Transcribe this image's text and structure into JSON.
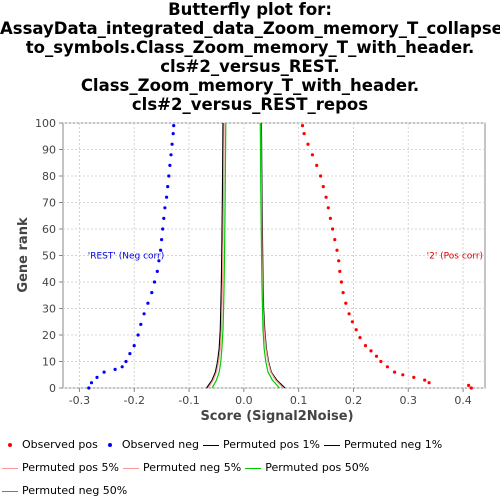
{
  "title_lines": [
    "Butterfly plot for:",
    "AssayData_integrated_data_Zoom_memory_T_collapsed_",
    "to_symbols.Class_Zoom_memory_T_with_header.",
    "cls#2_versus_REST.",
    "Class_Zoom_memory_T_with_header.",
    "cls#2_versus_REST_repos"
  ],
  "chart_data": {
    "type": "scatter",
    "xlabel": "Score (Signal2Noise)",
    "ylabel": "Gene rank",
    "xlim": [
      -0.33,
      0.44
    ],
    "ylim": [
      0,
      100
    ],
    "xticks": [
      "-0.3",
      "-0.2",
      "-0.1",
      "0.0",
      "0.1",
      "0.2",
      "0.3",
      "0.4"
    ],
    "xtick_values": [
      -0.3,
      -0.2,
      -0.1,
      0.0,
      0.1,
      0.2,
      0.3,
      0.4
    ],
    "yticks": [
      "0",
      "10",
      "20",
      "30",
      "40",
      "50",
      "60",
      "70",
      "80",
      "90",
      "100"
    ],
    "ytick_values": [
      0,
      10,
      20,
      30,
      40,
      50,
      60,
      70,
      80,
      90,
      100
    ],
    "grid": true,
    "annotations": [
      {
        "text": "'REST' (Neg corr)",
        "x": -0.215,
        "y": 50,
        "color": "#0000dd"
      },
      {
        "text": "'2' (Pos corr)",
        "x": 0.385,
        "y": 50,
        "color": "#dd0000"
      }
    ],
    "series": [
      {
        "name": "Observed pos",
        "kind": "points",
        "color": "#ff0000",
        "points": [
          [
            0.415,
            0
          ],
          [
            0.41,
            1
          ],
          [
            0.338,
            2
          ],
          [
            0.33,
            3
          ],
          [
            0.31,
            4
          ],
          [
            0.29,
            5
          ],
          [
            0.275,
            6
          ],
          [
            0.262,
            8
          ],
          [
            0.25,
            10
          ],
          [
            0.242,
            12
          ],
          [
            0.232,
            14
          ],
          [
            0.222,
            16
          ],
          [
            0.212,
            19
          ],
          [
            0.205,
            22
          ],
          [
            0.198,
            25
          ],
          [
            0.192,
            28
          ],
          [
            0.186,
            32
          ],
          [
            0.181,
            36
          ],
          [
            0.178,
            40
          ],
          [
            0.175,
            44
          ],
          [
            0.173,
            48
          ],
          [
            0.17,
            52
          ],
          [
            0.166,
            56
          ],
          [
            0.162,
            60
          ],
          [
            0.158,
            64
          ],
          [
            0.154,
            68
          ],
          [
            0.15,
            72
          ],
          [
            0.145,
            76
          ],
          [
            0.14,
            80
          ],
          [
            0.133,
            84
          ],
          [
            0.125,
            88
          ],
          [
            0.117,
            92
          ],
          [
            0.11,
            96
          ],
          [
            0.107,
            99
          ]
        ]
      },
      {
        "name": "Observed neg",
        "kind": "points",
        "color": "#0000ff",
        "points": [
          [
            -0.283,
            0
          ],
          [
            -0.278,
            2
          ],
          [
            -0.268,
            4
          ],
          [
            -0.255,
            6
          ],
          [
            -0.235,
            7
          ],
          [
            -0.222,
            8
          ],
          [
            -0.215,
            10
          ],
          [
            -0.208,
            13
          ],
          [
            -0.2,
            16
          ],
          [
            -0.193,
            20
          ],
          [
            -0.188,
            24
          ],
          [
            -0.182,
            28
          ],
          [
            -0.175,
            32
          ],
          [
            -0.168,
            36
          ],
          [
            -0.163,
            40
          ],
          [
            -0.158,
            44
          ],
          [
            -0.155,
            48
          ],
          [
            -0.152,
            52
          ],
          [
            -0.15,
            56
          ],
          [
            -0.148,
            60
          ],
          [
            -0.146,
            64
          ],
          [
            -0.144,
            68
          ],
          [
            -0.141,
            72
          ],
          [
            -0.139,
            76
          ],
          [
            -0.137,
            80
          ],
          [
            -0.135,
            84
          ],
          [
            -0.133,
            88
          ],
          [
            -0.131,
            92
          ],
          [
            -0.129,
            96
          ],
          [
            -0.128,
            99
          ]
        ]
      },
      {
        "name": "Permuted pos 1%",
        "kind": "line",
        "color": "#000000",
        "points": [
          [
            0.075,
            0
          ],
          [
            0.06,
            3
          ],
          [
            0.05,
            6
          ],
          [
            0.045,
            10
          ],
          [
            0.041,
            15
          ],
          [
            0.038,
            22
          ],
          [
            0.036,
            30
          ],
          [
            0.035,
            40
          ],
          [
            0.034,
            55
          ],
          [
            0.033,
            75
          ],
          [
            0.032,
            100
          ]
        ]
      },
      {
        "name": "Permuted neg 1%",
        "kind": "line",
        "color": "#000000",
        "points": [
          [
            -0.068,
            0
          ],
          [
            -0.058,
            3
          ],
          [
            -0.052,
            6
          ],
          [
            -0.048,
            10
          ],
          [
            -0.045,
            15
          ],
          [
            -0.043,
            22
          ],
          [
            -0.042,
            30
          ],
          [
            -0.041,
            40
          ],
          [
            -0.04,
            55
          ],
          [
            -0.039,
            75
          ],
          [
            -0.038,
            100
          ]
        ]
      },
      {
        "name": "Permuted pos 5%",
        "kind": "line",
        "color": "#ff9999",
        "points": [
          [
            0.072,
            0
          ],
          [
            0.058,
            3
          ],
          [
            0.049,
            6
          ],
          [
            0.044,
            10
          ],
          [
            0.04,
            15
          ],
          [
            0.037,
            22
          ],
          [
            0.035,
            30
          ],
          [
            0.034,
            40
          ],
          [
            0.033,
            55
          ],
          [
            0.032,
            75
          ],
          [
            0.031,
            100
          ]
        ]
      },
      {
        "name": "Permuted neg 5%",
        "kind": "line",
        "color": "#ff9999",
        "points": [
          [
            -0.065,
            0
          ],
          [
            -0.056,
            3
          ],
          [
            -0.05,
            6
          ],
          [
            -0.046,
            10
          ],
          [
            -0.043,
            15
          ],
          [
            -0.041,
            22
          ],
          [
            -0.04,
            30
          ],
          [
            -0.039,
            40
          ],
          [
            -0.038,
            55
          ],
          [
            -0.037,
            75
          ],
          [
            -0.036,
            100
          ]
        ]
      },
      {
        "name": "Permuted pos 50%",
        "kind": "line",
        "color": "#00cc00",
        "points": [
          [
            0.065,
            0
          ],
          [
            0.052,
            3
          ],
          [
            0.044,
            6
          ],
          [
            0.04,
            10
          ],
          [
            0.037,
            15
          ],
          [
            0.035,
            22
          ],
          [
            0.034,
            30
          ],
          [
            0.033,
            40
          ],
          [
            0.032,
            55
          ],
          [
            0.031,
            75
          ],
          [
            0.03,
            100
          ]
        ]
      },
      {
        "name": "Permuted neg 50%",
        "kind": "line",
        "color": "#00cc00",
        "points": [
          [
            -0.058,
            0
          ],
          [
            -0.05,
            3
          ],
          [
            -0.045,
            6
          ],
          [
            -0.042,
            10
          ],
          [
            -0.04,
            15
          ],
          [
            -0.038,
            22
          ],
          [
            -0.037,
            30
          ],
          [
            -0.036,
            40
          ],
          [
            -0.035,
            55
          ],
          [
            -0.034,
            75
          ],
          [
            -0.033,
            100
          ]
        ]
      }
    ]
  },
  "legend_rows": [
    [
      "Observed pos",
      "Observed neg",
      "Permuted pos 1%",
      "Permuted neg 1%"
    ],
    [
      "Permuted pos 5%",
      "Permuted neg 5%",
      "Permuted pos 50%"
    ],
    [
      "Permuted neg 50%"
    ]
  ]
}
